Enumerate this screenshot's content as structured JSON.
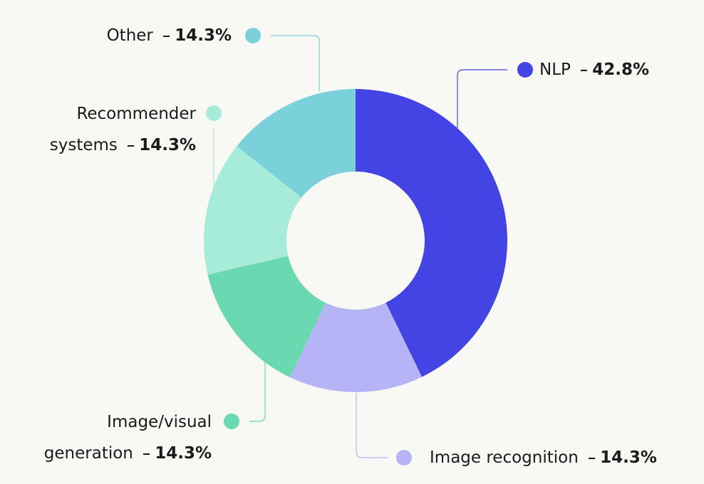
{
  "chart_data": {
    "type": "donut",
    "categories": [
      "NLP",
      "Image recognition",
      "Image/visual generation",
      "Recommender systems",
      "Other"
    ],
    "values": [
      42.8,
      14.3,
      14.3,
      14.3,
      14.3
    ],
    "value_labels": [
      "42.8%",
      "14.3%",
      "14.3%",
      "14.3%",
      "14.3%"
    ],
    "colors": [
      "#4443e4",
      "#b6b4f6",
      "#6ad8b1",
      "#a6ecd9",
      "#7bd1d9"
    ]
  }
}
